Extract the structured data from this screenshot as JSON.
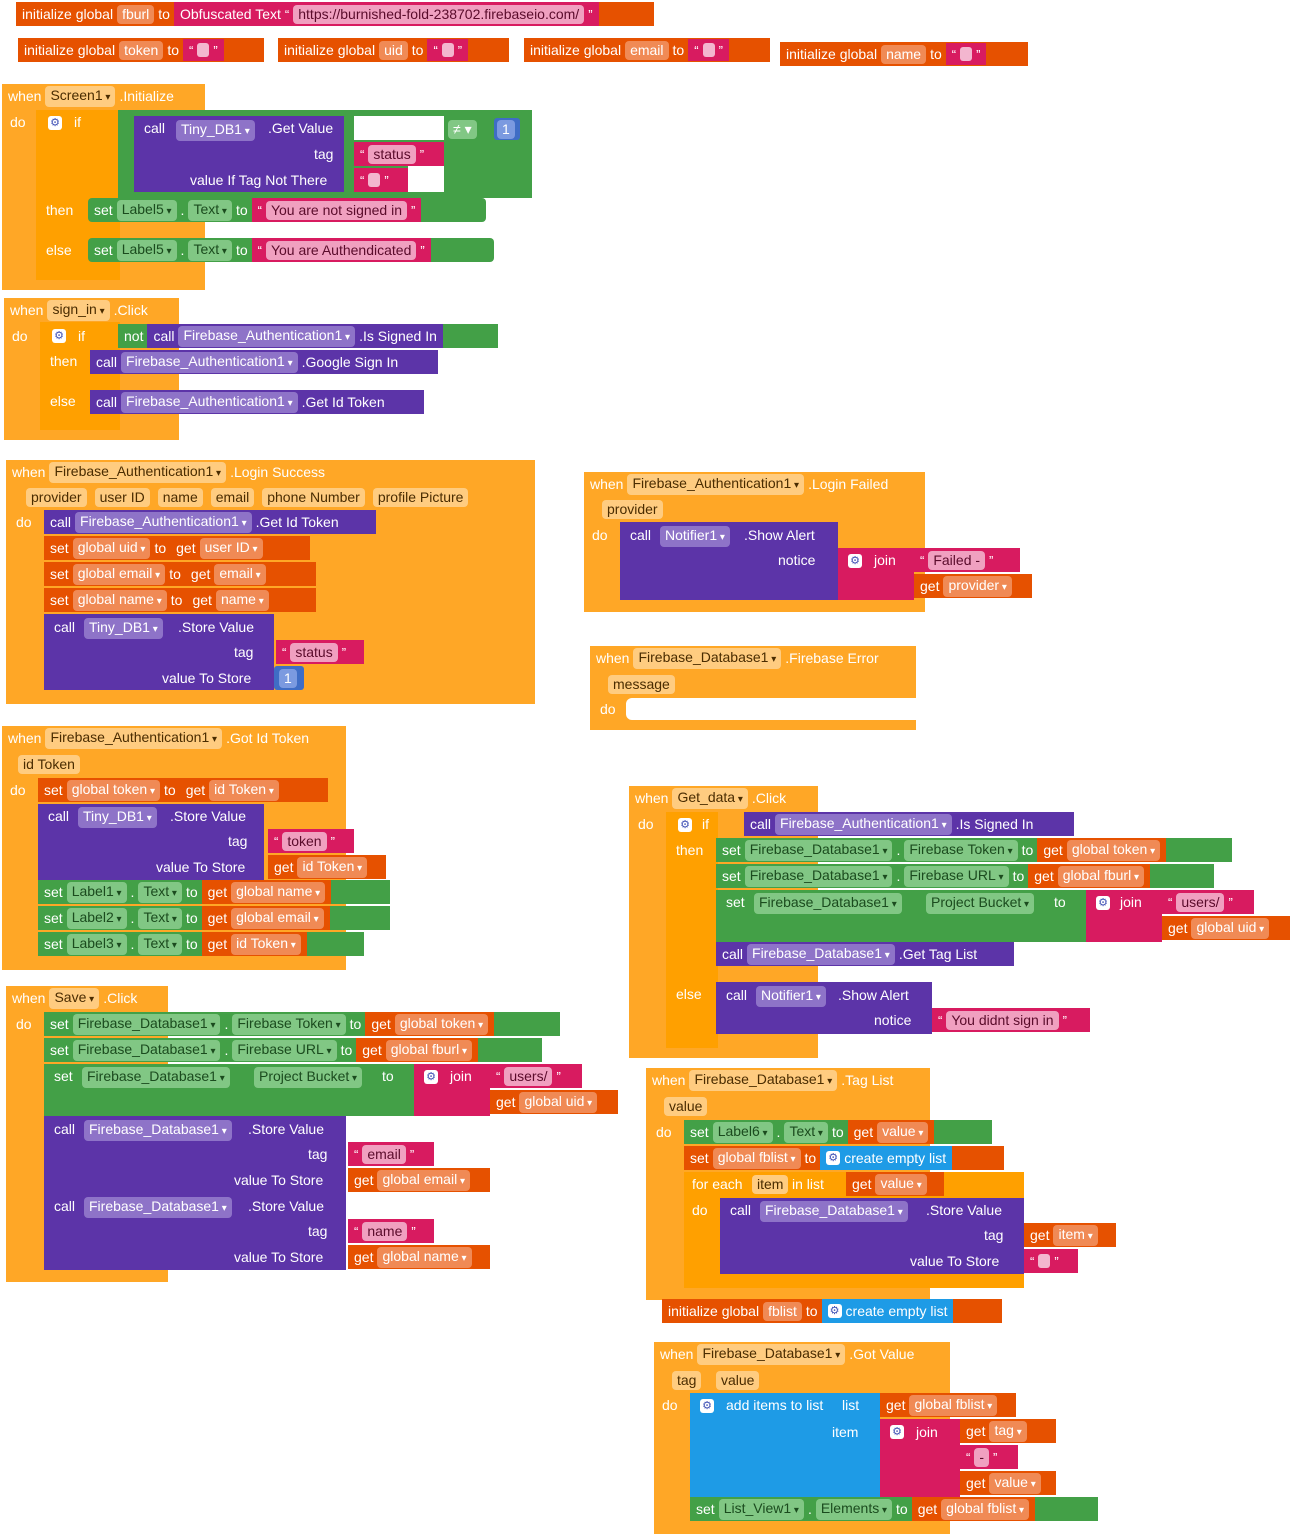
{
  "g_fburl": {
    "init": "initialize global",
    "var": "fburl",
    "to": "to",
    "obf": "Obfuscated Text",
    "url": "https://burnished-fold-238702.firebaseio.com/"
  },
  "g_token": {
    "init": "initialize global",
    "var": "token",
    "to": "to"
  },
  "g_uid": {
    "init": "initialize global",
    "var": "uid",
    "to": "to"
  },
  "g_email": {
    "init": "initialize global",
    "var": "email",
    "to": "to"
  },
  "g_name": {
    "init": "initialize global",
    "var": "name",
    "to": "to"
  },
  "kw": {
    "when": "when",
    "do": "do",
    "if": "if",
    "then": "then",
    "else": "else",
    "call": "call",
    "set": "set",
    "to": "to",
    "get": "get",
    "not": "not",
    "join": "join",
    "tag": "tag",
    "notice": "notice",
    "value_to_store": "value To Store",
    "vitnt": "value If Tag Not There",
    "neq": "≠",
    "one": "1",
    "for_each": "for each",
    "in_list": "in list",
    "list": "list",
    "item": "item",
    "create_empty_list": "create empty list",
    "add_items": "add items to list"
  },
  "screen_init": {
    "comp": "Screen1",
    "evt": ".Initialize",
    "db": "Tiny_DB1",
    "method": ".Get Value",
    "tag_str": "status",
    "label": "Label5",
    "prop": "Text",
    "then_str": "You are not signed in",
    "else_str": "You are Authendicated"
  },
  "signin": {
    "comp": "sign_in",
    "evt": ".Click",
    "auth": "Firebase_Authentication1",
    "m1": ".Is Signed In",
    "m2": ".Google Sign In",
    "m3": ".Get Id Token"
  },
  "login_success": {
    "comp": "Firebase_Authentication1",
    "evt": ".Login Success",
    "params": [
      "provider",
      "user ID",
      "name",
      "email",
      "phone Number",
      "profile Picture"
    ],
    "m_token": ".Get Id Token",
    "gv_uid": "global uid",
    "gv_email": "global email",
    "gv_name": "global name",
    "get_uid": "user ID",
    "get_email": "email",
    "get_name": "name",
    "db": "Tiny_DB1",
    "store": ".Store Value",
    "tag_str": "status",
    "val": "1"
  },
  "login_failed": {
    "comp": "Firebase_Authentication1",
    "evt": ".Login Failed",
    "param": "provider",
    "notifier": "Notifier1",
    "show": ".Show Alert",
    "str": "Failed - ",
    "get": "provider"
  },
  "fb_error": {
    "comp": "Firebase_Database1",
    "evt": ".Firebase Error",
    "param": "message"
  },
  "got_id": {
    "comp": "Firebase_Authentication1",
    "evt": ".Got Id Token",
    "param": "id Token",
    "gv_token": "global token",
    "get_idtoken": "id Token",
    "db": "Tiny_DB1",
    "store": ".Store Value",
    "tag_str": "token",
    "l1": "Label1",
    "l2": "Label2",
    "l3": "Label3",
    "prop": "Text",
    "gname": "global name",
    "gemail": "global email"
  },
  "get_data": {
    "comp": "Get_data",
    "evt": ".Click",
    "auth": "Firebase_Authentication1",
    "m1": ".Is Signed In",
    "fdb": "Firebase_Database1",
    "p_token": "Firebase Token",
    "p_url": "Firebase URL",
    "p_bucket": "Project Bucket",
    "g_token": "global token",
    "g_fburl": "global fburl",
    "users": "users/",
    "g_uid": "global uid",
    "taglist": ".Get Tag List",
    "notifier": "Notifier1",
    "show": ".Show Alert",
    "str": "You didnt sign in"
  },
  "save": {
    "comp": "Save",
    "evt": ".Click",
    "fdb": "Firebase_Database1",
    "p_token": "Firebase Token",
    "p_url": "Firebase URL",
    "p_bucket": "Project Bucket",
    "g_token": "global token",
    "g_fburl": "global fburl",
    "users": "users/",
    "g_uid": "global uid",
    "store": ".Store Value",
    "tag_email": "email",
    "g_email": "global email",
    "tag_name": "name",
    "g_name": "global name"
  },
  "tag_list": {
    "comp": "Firebase_Database1",
    "evt": ".Tag List",
    "param": "value",
    "label": "Label6",
    "prop": "Text",
    "gv_fblist": "global fblist",
    "item": "item",
    "fdb": "Firebase_Database1",
    "store": ".Store Value"
  },
  "g_fblist": {
    "init": "initialize global",
    "var": "fblist",
    "to": "to"
  },
  "got_value": {
    "comp": "Firebase_Database1",
    "evt": ".Got Value",
    "p1": "tag",
    "p2": "value",
    "gfblist": "global fblist",
    "dash": " - ",
    "lv": "List_View1",
    "elements": "Elements"
  }
}
